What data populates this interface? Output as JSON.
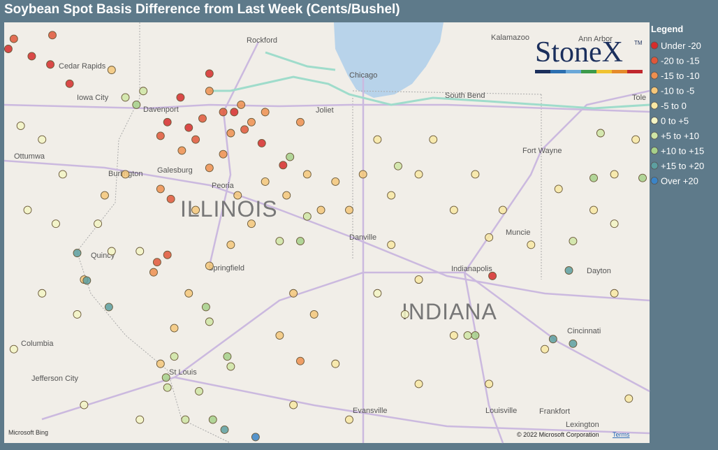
{
  "header": {
    "title": "Soybean Spot Basis Difference from Last Week (Cents/Bushel)"
  },
  "legend": {
    "title": "Legend",
    "items": [
      {
        "label": "Under -20",
        "color": "#d62b2b",
        "points": [
          [
            -92.81,
            42.16
          ],
          [
            -92.47,
            42.08
          ],
          [
            -92.2,
            41.99
          ],
          [
            -91.92,
            41.78
          ],
          [
            -90.5,
            41.36
          ],
          [
            -90.31,
            41.63
          ],
          [
            -89.53,
            41.47
          ],
          [
            -89.13,
            41.13
          ],
          [
            -88.82,
            40.89
          ],
          [
            -85.78,
            39.68
          ],
          [
            -89.89,
            41.89
          ],
          [
            -90.19,
            41.3
          ]
        ]
      },
      {
        "label": "-20 to -15",
        "color": "#e0573a",
        "points": [
          [
            -92.73,
            42.27
          ],
          [
            -92.17,
            42.31
          ],
          [
            -90.6,
            41.21
          ],
          [
            -89.99,
            41.4
          ],
          [
            -89.38,
            41.28
          ],
          [
            -90.45,
            40.52
          ],
          [
            -90.5,
            39.91
          ],
          [
            -90.65,
            39.83
          ],
          [
            -89.69,
            41.47
          ],
          [
            -90.09,
            41.17
          ]
        ]
      },
      {
        "label": "-15 to -10",
        "color": "#ef8f4f",
        "points": [
          [
            -89.89,
            41.7
          ],
          [
            -90.6,
            40.63
          ],
          [
            -90.7,
            39.72
          ],
          [
            -90.29,
            41.05
          ],
          [
            -89.58,
            41.24
          ],
          [
            -89.43,
            41.55
          ],
          [
            -89.08,
            41.47
          ],
          [
            -88.57,
            41.36
          ],
          [
            -89.69,
            41.01
          ],
          [
            -88.57,
            38.75
          ],
          [
            -89.89,
            40.86
          ],
          [
            -89.28,
            41.36
          ]
        ]
      },
      {
        "label": "-10 to -5",
        "color": "#f5c77a",
        "points": [
          [
            -89.08,
            40.71
          ],
          [
            -88.77,
            40.56
          ],
          [
            -88.47,
            40.79
          ],
          [
            -88.27,
            40.4
          ],
          [
            -89.28,
            40.25
          ],
          [
            -89.58,
            40.02
          ],
          [
            -89.89,
            39.79
          ],
          [
            -90.19,
            39.49
          ],
          [
            -90.4,
            39.11
          ],
          [
            -90.6,
            38.72
          ],
          [
            -88.67,
            39.49
          ],
          [
            -88.37,
            39.26
          ],
          [
            -88.87,
            39.03
          ],
          [
            -88.06,
            40.71
          ],
          [
            -87.86,
            40.4
          ],
          [
            -89.48,
            40.56
          ],
          [
            -90.09,
            40.4
          ],
          [
            -91.11,
            40.79
          ],
          [
            -91.41,
            40.56
          ],
          [
            -91.71,
            39.64
          ],
          [
            -87.66,
            40.79
          ],
          [
            -91.31,
            41.93
          ]
        ]
      },
      {
        "label": "-5 to 0",
        "color": "#f8e7a3",
        "points": [
          [
            -86.85,
            40.79
          ],
          [
            -86.34,
            40.4
          ],
          [
            -85.83,
            40.1
          ],
          [
            -87.25,
            40.56
          ],
          [
            -87.45,
            41.17
          ],
          [
            -86.64,
            41.17
          ],
          [
            -86.03,
            40.79
          ],
          [
            -85.63,
            40.4
          ],
          [
            -84.82,
            40.63
          ],
          [
            -84.31,
            40.4
          ],
          [
            -84.01,
            40.79
          ],
          [
            -83.7,
            41.17
          ],
          [
            -86.85,
            39.64
          ],
          [
            -86.34,
            39.03
          ],
          [
            -85.83,
            38.5
          ],
          [
            -86.85,
            38.5
          ],
          [
            -87.86,
            38.11
          ],
          [
            -88.67,
            38.27
          ],
          [
            -88.06,
            38.72
          ],
          [
            -87.25,
            40.02
          ],
          [
            -85.22,
            40.02
          ],
          [
            -84.01,
            39.49
          ],
          [
            -85.02,
            38.88
          ],
          [
            -83.8,
            38.34
          ]
        ]
      },
      {
        "label": "0 to +5",
        "color": "#f3f4c4",
        "points": [
          [
            -92.63,
            41.32
          ],
          [
            -92.32,
            41.17
          ],
          [
            -92.02,
            40.79
          ],
          [
            -92.53,
            40.4
          ],
          [
            -92.12,
            40.25
          ],
          [
            -91.51,
            40.25
          ],
          [
            -91.31,
            39.95
          ],
          [
            -90.9,
            39.95
          ],
          [
            -92.32,
            39.49
          ],
          [
            -91.81,
            39.26
          ],
          [
            -92.73,
            38.88
          ],
          [
            -91.71,
            38.27
          ],
          [
            -90.9,
            38.11
          ],
          [
            -87.05,
            39.26
          ],
          [
            -87.45,
            39.49
          ],
          [
            -84.01,
            40.25
          ]
        ]
      },
      {
        "label": "+5 to +10",
        "color": "#cfe5a5",
        "points": [
          [
            -91.11,
            41.63
          ],
          [
            -90.85,
            41.7
          ],
          [
            -88.47,
            40.33
          ],
          [
            -88.87,
            40.06
          ],
          [
            -89.89,
            39.18
          ],
          [
            -90.4,
            38.8
          ],
          [
            -90.5,
            38.46
          ],
          [
            -90.04,
            38.42
          ],
          [
            -89.58,
            38.69
          ],
          [
            -86.14,
            39.03
          ],
          [
            -84.21,
            41.24
          ],
          [
            -84.61,
            40.06
          ],
          [
            -87.15,
            40.88
          ],
          [
            -90.24,
            38.11
          ]
        ]
      },
      {
        "label": "+10 to +15",
        "color": "#a6d08a",
        "points": [
          [
            -90.95,
            41.55
          ],
          [
            -88.72,
            40.98
          ],
          [
            -88.57,
            40.06
          ],
          [
            -89.94,
            39.34
          ],
          [
            -89.63,
            38.8
          ],
          [
            -90.52,
            38.57
          ],
          [
            -89.84,
            38.11
          ],
          [
            -84.31,
            40.75
          ],
          [
            -83.6,
            40.75
          ],
          [
            -86.03,
            39.03
          ]
        ]
      },
      {
        "label": "+15 to +20",
        "color": "#5d9fa0",
        "points": [
          [
            -91.81,
            39.93
          ],
          [
            -91.67,
            39.63
          ],
          [
            -91.35,
            39.34
          ],
          [
            -89.67,
            38.0
          ],
          [
            -84.67,
            39.74
          ],
          [
            -84.9,
            38.99
          ],
          [
            -84.61,
            38.94
          ]
        ]
      },
      {
        "label": "Over +20",
        "color": "#3b84c6",
        "points": [
          [
            -89.22,
            37.92
          ]
        ]
      }
    ]
  },
  "map": {
    "cities": [
      "Cedar Rapids",
      "Iowa City",
      "Davenport",
      "Ottumwa",
      "Burlington",
      "Galesburg",
      "Peoria",
      "Quincy",
      "Springfield",
      "Columbia",
      "Jefferson City",
      "St Louis",
      "Rockford",
      "Chicago",
      "Joliet",
      "South Bend",
      "Kalamazoo",
      "Ann Arbor",
      "Fort Wayne",
      "Muncie",
      "Danville",
      "Indianapolis",
      "Dayton",
      "Cincinnati",
      "Louisville",
      "Frankfort",
      "Lexington",
      "Evansville",
      "Tole"
    ],
    "states": [
      "ILLINOIS",
      "INDIANA"
    ]
  },
  "logo": {
    "text": "StoneX",
    "mark": "TM"
  },
  "attribution": {
    "bing": "Microsoft Bing",
    "copyright": "© 2022 Microsoft Corporation",
    "terms": "Terms"
  }
}
